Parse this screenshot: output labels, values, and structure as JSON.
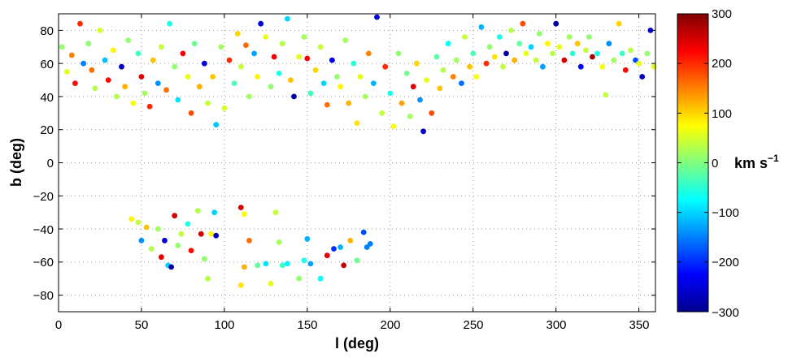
{
  "chart_data": {
    "type": "scatter",
    "xlabel": "l (deg)",
    "ylabel": "b (deg)",
    "xlim": [
      0,
      360
    ],
    "ylim": [
      -90,
      90
    ],
    "x_ticks": [
      "0",
      "50",
      "100",
      "150",
      "200",
      "250",
      "300",
      "350"
    ],
    "y_ticks": [
      "80",
      "60",
      "40",
      "20",
      "0",
      "−20",
      "−40",
      "−60",
      "−80"
    ],
    "grid": true,
    "colorbar": {
      "label": "km s",
      "label_superscript": "−1",
      "range": [
        -300,
        300
      ],
      "colormap": "jet",
      "ticks": [
        "300",
        "200",
        "100",
        "0",
        "−100",
        "−200",
        "−300"
      ]
    },
    "points": [
      [
        2,
        70,
        10
      ],
      [
        5,
        55,
        60
      ],
      [
        8,
        65,
        150
      ],
      [
        10,
        48,
        220
      ],
      [
        13,
        84,
        200
      ],
      [
        15,
        60,
        -150
      ],
      [
        18,
        72,
        10
      ],
      [
        20,
        56,
        160
      ],
      [
        22,
        45,
        30
      ],
      [
        25,
        80,
        50
      ],
      [
        28,
        62,
        -110
      ],
      [
        30,
        50,
        220
      ],
      [
        33,
        68,
        80
      ],
      [
        35,
        40,
        30
      ],
      [
        38,
        58,
        -260
      ],
      [
        40,
        46,
        120
      ],
      [
        42,
        74,
        10
      ],
      [
        45,
        36,
        70
      ],
      [
        48,
        66,
        -40
      ],
      [
        50,
        52,
        240
      ],
      [
        52,
        42,
        20
      ],
      [
        55,
        34,
        200
      ],
      [
        57,
        62,
        110
      ],
      [
        60,
        48,
        -140
      ],
      [
        62,
        70,
        40
      ],
      [
        65,
        44,
        160
      ],
      [
        67,
        84,
        -60
      ],
      [
        70,
        58,
        10
      ],
      [
        72,
        38,
        -90
      ],
      [
        75,
        66,
        230
      ],
      [
        78,
        52,
        60
      ],
      [
        80,
        30,
        180
      ],
      [
        82,
        72,
        -10
      ],
      [
        85,
        46,
        120
      ],
      [
        88,
        60,
        -250
      ],
      [
        90,
        36,
        40
      ],
      [
        93,
        52,
        110
      ],
      [
        95,
        23,
        -110
      ],
      [
        98,
        70,
        20
      ],
      [
        100,
        33,
        50
      ],
      [
        103,
        62,
        200
      ],
      [
        106,
        48,
        -30
      ],
      [
        108,
        78,
        100
      ],
      [
        110,
        58,
        40
      ],
      [
        113,
        71,
        160
      ],
      [
        115,
        40,
        20
      ],
      [
        118,
        66,
        -130
      ],
      [
        120,
        52,
        80
      ],
      [
        122,
        84,
        -250
      ],
      [
        125,
        76,
        60
      ],
      [
        128,
        46,
        10
      ],
      [
        130,
        64,
        230
      ],
      [
        133,
        54,
        -60
      ],
      [
        135,
        72,
        30
      ],
      [
        138,
        87,
        -100
      ],
      [
        140,
        50,
        110
      ],
      [
        142,
        40,
        -280
      ],
      [
        145,
        64,
        60
      ],
      [
        148,
        76,
        20
      ],
      [
        150,
        63,
        230
      ],
      [
        152,
        42,
        -40
      ],
      [
        155,
        56,
        100
      ],
      [
        158,
        70,
        40
      ],
      [
        160,
        48,
        -100
      ],
      [
        162,
        35,
        160
      ],
      [
        165,
        62,
        -230
      ],
      [
        168,
        52,
        10
      ],
      [
        170,
        46,
        80
      ],
      [
        173,
        74,
        20
      ],
      [
        175,
        36,
        120
      ],
      [
        178,
        60,
        -50
      ],
      [
        180,
        24,
        90
      ],
      [
        182,
        52,
        60
      ],
      [
        185,
        40,
        20
      ],
      [
        187,
        66,
        150
      ],
      [
        190,
        48,
        -120
      ],
      [
        192,
        88,
        -250
      ],
      [
        195,
        30,
        40
      ],
      [
        197,
        58,
        200
      ],
      [
        200,
        42,
        -60
      ],
      [
        202,
        22,
        70
      ],
      [
        205,
        66,
        10
      ],
      [
        207,
        36,
        130
      ],
      [
        210,
        54,
        -10
      ],
      [
        212,
        28,
        20
      ],
      [
        214,
        46,
        240
      ],
      [
        216,
        60,
        100
      ],
      [
        218,
        38,
        -140
      ],
      [
        220,
        19,
        -260
      ],
      [
        222,
        50,
        60
      ],
      [
        225,
        30,
        180
      ],
      [
        228,
        64,
        -20
      ],
      [
        230,
        45,
        110
      ],
      [
        232,
        56,
        30
      ],
      [
        235,
        72,
        -70
      ],
      [
        238,
        52,
        150
      ],
      [
        240,
        62,
        20
      ],
      [
        243,
        48,
        -160
      ],
      [
        245,
        76,
        40
      ],
      [
        248,
        58,
        110
      ],
      [
        250,
        66,
        -30
      ],
      [
        252,
        52,
        70
      ],
      [
        255,
        82,
        -120
      ],
      [
        258,
        60,
        200
      ],
      [
        260,
        70,
        10
      ],
      [
        263,
        64,
        90
      ],
      [
        266,
        76,
        -60
      ],
      [
        268,
        58,
        40
      ],
      [
        270,
        66,
        -280
      ],
      [
        273,
        80,
        30
      ],
      [
        275,
        62,
        120
      ],
      [
        278,
        72,
        -20
      ],
      [
        280,
        84,
        180
      ],
      [
        282,
        66,
        60
      ],
      [
        285,
        70,
        -100
      ],
      [
        288,
        62,
        40
      ],
      [
        290,
        78,
        10
      ],
      [
        292,
        58,
        -130
      ],
      [
        295,
        72,
        80
      ],
      [
        298,
        66,
        30
      ],
      [
        300,
        84,
        -280
      ],
      [
        302,
        70,
        60
      ],
      [
        305,
        62,
        250
      ],
      [
        308,
        76,
        20
      ],
      [
        310,
        66,
        -50
      ],
      [
        313,
        72,
        110
      ],
      [
        315,
        58,
        -220
      ],
      [
        318,
        68,
        40
      ],
      [
        320,
        76,
        10
      ],
      [
        322,
        64,
        280
      ],
      [
        325,
        66,
        -60
      ],
      [
        328,
        58,
        70
      ],
      [
        330,
        41,
        40
      ],
      [
        332,
        72,
        -140
      ],
      [
        335,
        62,
        20
      ],
      [
        338,
        84,
        100
      ],
      [
        340,
        66,
        -40
      ],
      [
        342,
        56,
        220
      ],
      [
        345,
        68,
        30
      ],
      [
        348,
        62,
        -180
      ],
      [
        350,
        60,
        60
      ],
      [
        352,
        52,
        -260
      ],
      [
        355,
        66,
        10
      ],
      [
        357,
        80,
        -250
      ],
      [
        359,
        58,
        60
      ],
      [
        44,
        -34,
        80
      ],
      [
        48,
        -36,
        40
      ],
      [
        50,
        -47,
        -140
      ],
      [
        53,
        -39,
        110
      ],
      [
        56,
        -52,
        30
      ],
      [
        60,
        -40,
        20
      ],
      [
        62,
        -57,
        240
      ],
      [
        64,
        -47,
        -250
      ],
      [
        66,
        -62,
        -100
      ],
      [
        68,
        -63,
        -280
      ],
      [
        70,
        -32,
        250
      ],
      [
        72,
        -50,
        10
      ],
      [
        74,
        -43,
        40
      ],
      [
        78,
        -37,
        -60
      ],
      [
        80,
        -53,
        220
      ],
      [
        84,
        -29,
        30
      ],
      [
        86,
        -43,
        250
      ],
      [
        88,
        -58,
        10
      ],
      [
        90,
        -70,
        30
      ],
      [
        92,
        -43,
        80
      ],
      [
        94,
        -30,
        -100
      ],
      [
        95,
        -44,
        -260
      ],
      [
        110,
        -27,
        250
      ],
      [
        112,
        -31,
        70
      ],
      [
        115,
        -47,
        160
      ],
      [
        112,
        -63,
        120
      ],
      [
        110,
        -74,
        90
      ],
      [
        120,
        -62,
        -20
      ],
      [
        125,
        -61,
        -90
      ],
      [
        128,
        -73,
        60
      ],
      [
        131,
        -30,
        40
      ],
      [
        133,
        -48,
        20
      ],
      [
        135,
        -62,
        -40
      ],
      [
        138,
        -61,
        -80
      ],
      [
        145,
        -70,
        10
      ],
      [
        148,
        -59,
        -60
      ],
      [
        150,
        -46,
        -120
      ],
      [
        152,
        -61,
        -130
      ],
      [
        158,
        -70,
        -70
      ],
      [
        162,
        -56,
        240
      ],
      [
        166,
        -52,
        -200
      ],
      [
        170,
        -51,
        -120
      ],
      [
        172,
        -62,
        260
      ],
      [
        176,
        -47,
        120
      ],
      [
        180,
        -59,
        -10
      ],
      [
        184,
        -42,
        -180
      ],
      [
        186,
        -51,
        -150
      ],
      [
        188,
        -49,
        -150
      ]
    ]
  }
}
